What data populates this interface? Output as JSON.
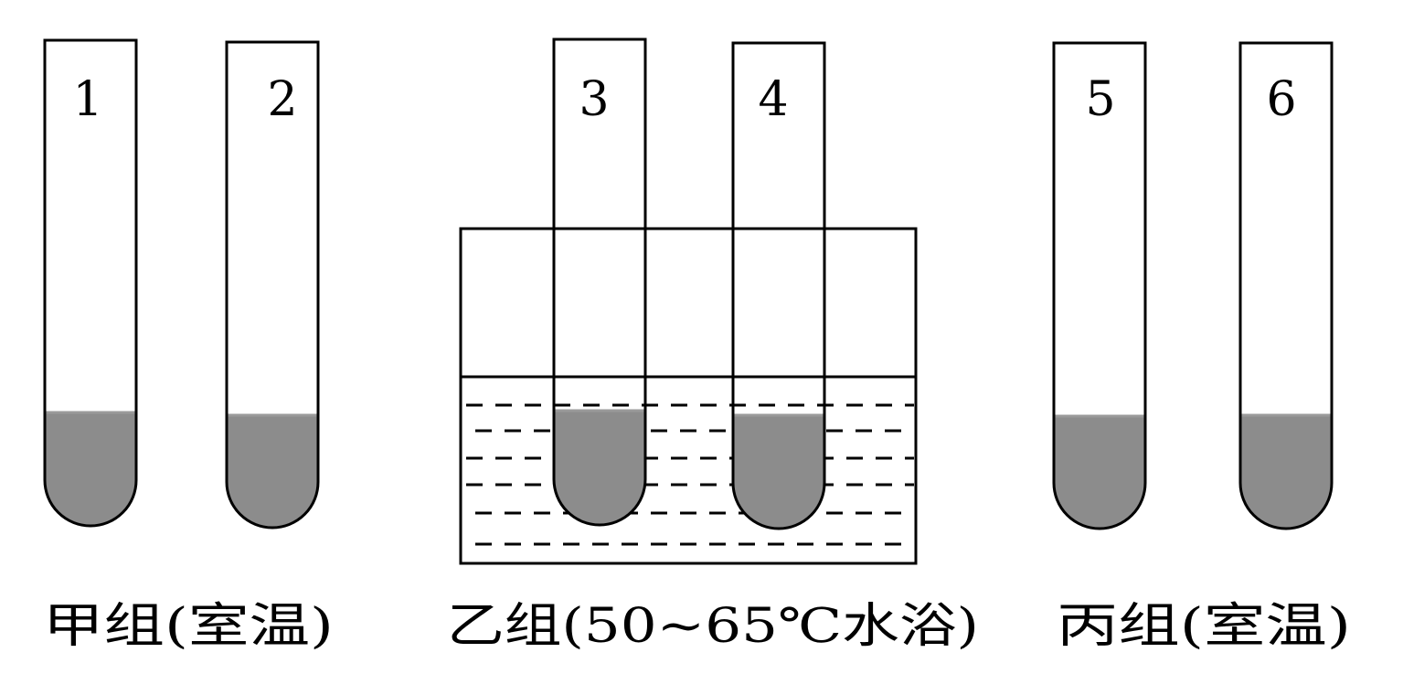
{
  "tubes": [
    {
      "number": "1"
    },
    {
      "number": "2"
    },
    {
      "number": "3"
    },
    {
      "number": "4"
    },
    {
      "number": "5"
    },
    {
      "number": "6"
    }
  ],
  "groups": [
    {
      "label": "甲组(室温)"
    },
    {
      "label": "乙组(50~65℃水浴)"
    },
    {
      "label": "丙组(室温)"
    }
  ],
  "colors": {
    "liquid": "#8c8c8c",
    "outline": "#000000",
    "background": "#ffffff"
  }
}
